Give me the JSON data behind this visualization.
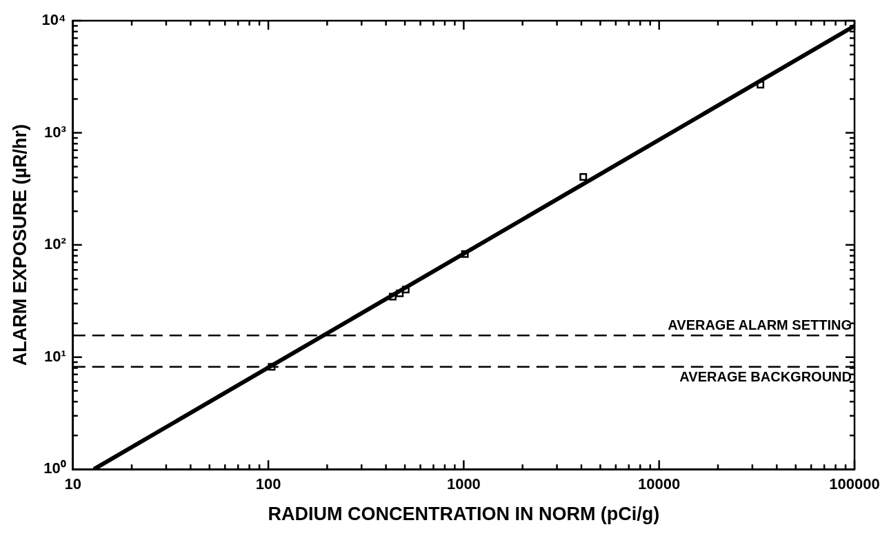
{
  "chart_data": {
    "type": "scatter",
    "xlabel": "RADIUM CONCENTRATION IN NORM (pCi/g)",
    "ylabel": "ALARM EXPOSURE (µR/hr)",
    "log": "xy",
    "grid": false,
    "legend": false,
    "xlim": [
      10,
      100000
    ],
    "ylim": [
      1,
      10000
    ],
    "xticks": [
      10,
      {
        "value": 20,
        "label": null
      },
      {
        "value": 30,
        "label": null
      },
      {
        "value": 40,
        "label": null
      },
      {
        "value": 50,
        "label": null
      },
      {
        "value": 60,
        "label": null
      },
      {
        "value": 70,
        "label": null
      },
      {
        "value": 80,
        "label": null
      },
      {
        "value": 90,
        "label": null
      },
      100,
      {
        "value": 200,
        "label": null
      },
      {
        "value": 300,
        "label": null
      },
      {
        "value": 400,
        "label": null
      },
      {
        "value": 500,
        "label": null
      },
      {
        "value": 600,
        "label": null
      },
      {
        "value": 700,
        "label": null
      },
      {
        "value": 800,
        "label": null
      },
      {
        "value": 900,
        "label": null
      },
      1000,
      {
        "value": 2000,
        "label": null
      },
      {
        "value": 3000,
        "label": null
      },
      {
        "value": 4000,
        "label": null
      },
      {
        "value": 5000,
        "label": null
      },
      {
        "value": 6000,
        "label": null
      },
      {
        "value": 7000,
        "label": null
      },
      {
        "value": 8000,
        "label": null
      },
      {
        "value": 9000,
        "label": null
      },
      10000,
      {
        "value": 20000,
        "label": null
      },
      {
        "value": 30000,
        "label": null
      },
      {
        "value": 40000,
        "label": null
      },
      {
        "value": 50000,
        "label": null
      },
      {
        "value": 60000,
        "label": null
      },
      {
        "value": 70000,
        "label": null
      },
      {
        "value": 80000,
        "label": null
      },
      {
        "value": 90000,
        "label": null
      },
      100000
    ],
    "yticks": [
      {
        "value": 1,
        "label": "10⁰"
      },
      {
        "value": 2,
        "label": null
      },
      {
        "value": 3,
        "label": null
      },
      {
        "value": 4,
        "label": null
      },
      {
        "value": 5,
        "label": null
      },
      {
        "value": 6,
        "label": null
      },
      {
        "value": 7,
        "label": null
      },
      {
        "value": 8,
        "label": null
      },
      {
        "value": 9,
        "label": null
      },
      {
        "value": 10,
        "label": "10¹"
      },
      {
        "value": 20,
        "label": null
      },
      {
        "value": 30,
        "label": null
      },
      {
        "value": 40,
        "label": null
      },
      {
        "value": 50,
        "label": null
      },
      {
        "value": 60,
        "label": null
      },
      {
        "value": 70,
        "label": null
      },
      {
        "value": 80,
        "label": null
      },
      {
        "value": 90,
        "label": null
      },
      {
        "value": 100,
        "label": "10²"
      },
      {
        "value": 200,
        "label": null
      },
      {
        "value": 300,
        "label": null
      },
      {
        "value": 400,
        "label": null
      },
      {
        "value": 500,
        "label": null
      },
      {
        "value": 600,
        "label": null
      },
      {
        "value": 700,
        "label": null
      },
      {
        "value": 800,
        "label": null
      },
      {
        "value": 900,
        "label": null
      },
      {
        "value": 1000,
        "label": "10³"
      },
      {
        "value": 2000,
        "label": null
      },
      {
        "value": 3000,
        "label": null
      },
      {
        "value": 4000,
        "label": null
      },
      {
        "value": 5000,
        "label": null
      },
      {
        "value": 6000,
        "label": null
      },
      {
        "value": 7000,
        "label": null
      },
      {
        "value": 8000,
        "label": null
      },
      {
        "value": 9000,
        "label": null
      },
      {
        "value": 10000,
        "label": "10⁴"
      }
    ],
    "series": [
      {
        "type": "scatter",
        "marker": "square",
        "color": "#000000",
        "x": [
          104,
          433,
          471,
          505,
          1014,
          4090,
          33000
        ],
        "values": [
          8.2,
          34.6,
          37,
          40,
          83,
          404,
          2690
        ]
      },
      {
        "type": "line",
        "marker": "none",
        "line_style": "solid",
        "color": "#000000",
        "x": [
          12.8,
          100000
        ],
        "values": [
          1,
          8980
        ]
      }
    ],
    "ref_lines": [
      {
        "axis": "y",
        "value": 15.6,
        "label": "AVERAGE ALARM SETTING",
        "color": "#000000",
        "line_style": "dashed"
      },
      {
        "axis": "y",
        "value": 8.2,
        "label": "AVERAGE BACKGROUND",
        "color": "#000000",
        "line_style": "dashed"
      }
    ]
  }
}
